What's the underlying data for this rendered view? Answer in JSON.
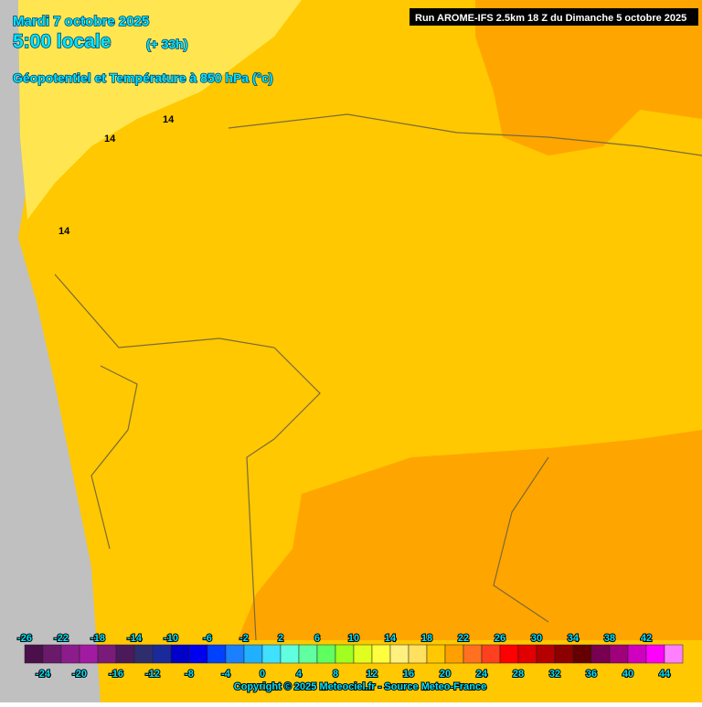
{
  "header": {
    "date": "Mardi 7 octobre 2025",
    "time": "5:00 locale",
    "lead": "(+ 33h)",
    "field": "Géopotentiel et Température à 850 hPa (°c)",
    "run": "Run AROME-IFS 2.5km 18 Z du Dimanche 5 octobre 2025"
  },
  "contour_labels": [
    "14",
    "14",
    "14"
  ],
  "legend": {
    "values": [
      -26,
      -24,
      -22,
      -20,
      -18,
      -16,
      -14,
      -12,
      -10,
      -8,
      -6,
      -4,
      -2,
      0,
      2,
      4,
      6,
      8,
      10,
      12,
      14,
      16,
      18,
      20,
      22,
      24,
      26,
      28,
      30,
      32,
      34,
      36,
      38,
      40,
      42,
      44
    ],
    "colors": [
      "#4b0f4b",
      "#6b1a6b",
      "#8c1c8c",
      "#a21aa2",
      "#7a1a7a",
      "#4b1a5a",
      "#2e2e6e",
      "#1a2a9a",
      "#0000c8",
      "#0000f0",
      "#0040ff",
      "#1a80ff",
      "#20b0ff",
      "#40e0ff",
      "#60ffe0",
      "#60ffa0",
      "#60ff60",
      "#a0ff20",
      "#e0ff20",
      "#ffff40",
      "#fff080",
      "#ffe060",
      "#ffc800",
      "#ffa000",
      "#ff7020",
      "#ff4020",
      "#ff0000",
      "#e00000",
      "#b40000",
      "#8c0000",
      "#640000",
      "#780050",
      "#a0007a",
      "#d000c0",
      "#ff00ff",
      "#ff80ff"
    ]
  },
  "footer": {
    "copyright": "Copyright © 2025 Meteociel.fr - Source Meteo-France"
  }
}
